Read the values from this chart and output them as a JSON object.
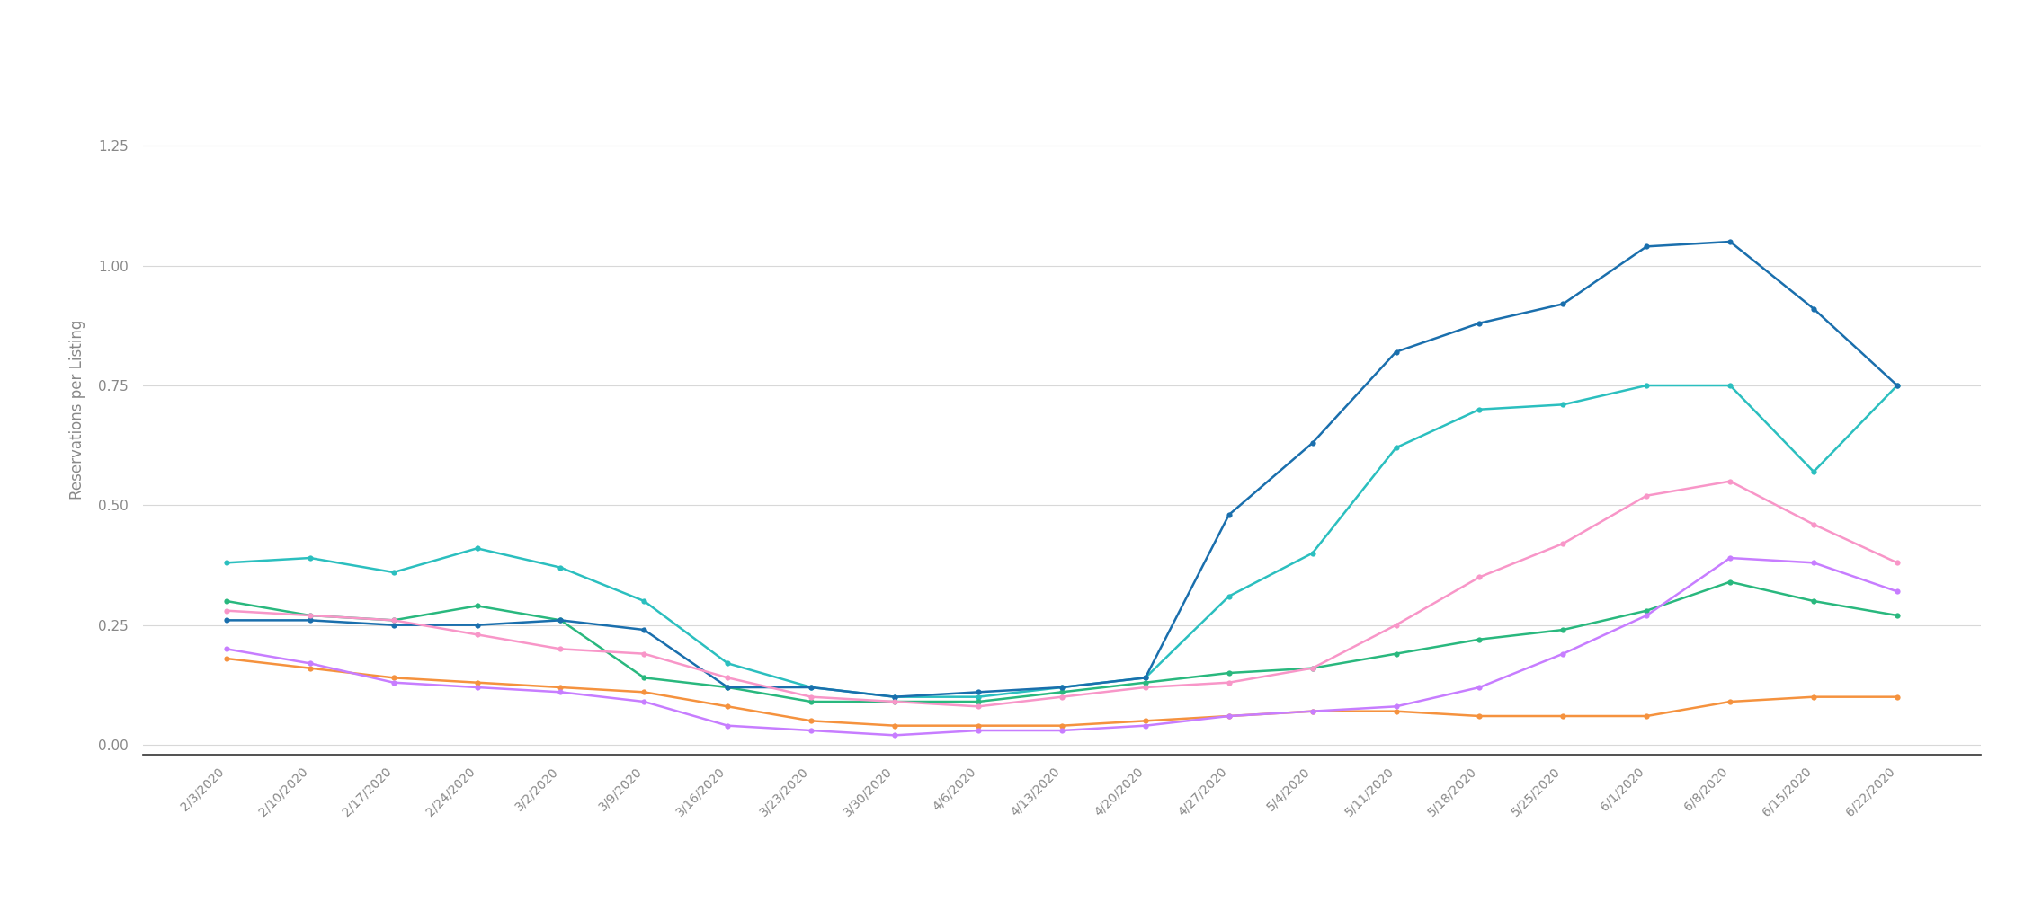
{
  "dates": [
    "2/3/2020",
    "2/10/2020",
    "2/17/2020",
    "2/24/2020",
    "3/2/2020",
    "3/9/2020",
    "3/16/2020",
    "3/23/2020",
    "3/30/2020",
    "4/6/2020",
    "4/13/2020",
    "4/20/2020",
    "4/27/2020",
    "5/4/2020",
    "5/11/2020",
    "5/18/2020",
    "5/25/2020",
    "6/1/2020",
    "6/8/2020",
    "6/15/2020",
    "6/22/2020"
  ],
  "series": {
    "East Coast Vacation Markets": {
      "color": "#2bbfbf",
      "values": [
        0.38,
        0.39,
        0.36,
        0.41,
        0.37,
        0.3,
        0.17,
        0.12,
        0.1,
        0.1,
        0.12,
        0.14,
        0.31,
        0.4,
        0.62,
        0.7,
        0.71,
        0.75,
        0.75,
        0.57,
        0.75
      ]
    },
    "Hawaii": {
      "color": "#f5923e",
      "values": [
        0.18,
        0.16,
        0.14,
        0.13,
        0.12,
        0.11,
        0.08,
        0.05,
        0.04,
        0.04,
        0.04,
        0.05,
        0.06,
        0.07,
        0.07,
        0.06,
        0.06,
        0.06,
        0.09,
        0.1,
        0.1
      ]
    },
    "Major Cities": {
      "color": "#29b87e",
      "values": [
        0.3,
        0.27,
        0.26,
        0.29,
        0.26,
        0.14,
        0.12,
        0.09,
        0.09,
        0.09,
        0.11,
        0.13,
        0.15,
        0.16,
        0.19,
        0.22,
        0.24,
        0.28,
        0.34,
        0.3,
        0.27
      ]
    },
    "Ski Markets": {
      "color": "#c77dff",
      "values": [
        0.2,
        0.17,
        0.13,
        0.12,
        0.11,
        0.09,
        0.04,
        0.03,
        0.02,
        0.03,
        0.03,
        0.04,
        0.06,
        0.07,
        0.08,
        0.12,
        0.19,
        0.27,
        0.39,
        0.38,
        0.32
      ]
    },
    "US Interior Vacation Areas": {
      "color": "#1a6fad",
      "values": [
        0.26,
        0.26,
        0.25,
        0.25,
        0.26,
        0.24,
        0.12,
        0.12,
        0.1,
        0.11,
        0.12,
        0.14,
        0.48,
        0.63,
        0.82,
        0.88,
        0.92,
        1.04,
        1.05,
        0.91,
        0.75
      ]
    },
    "West Coast": {
      "color": "#f896c8",
      "values": [
        0.28,
        0.27,
        0.26,
        0.23,
        0.2,
        0.19,
        0.14,
        0.1,
        0.09,
        0.08,
        0.1,
        0.12,
        0.13,
        0.16,
        0.25,
        0.35,
        0.42,
        0.52,
        0.55,
        0.46,
        0.38
      ]
    }
  },
  "ylabel": "Reservations per Listing",
  "ylim": [
    -0.02,
    1.42
  ],
  "yticks": [
    0.0,
    0.25,
    0.5,
    0.75,
    1.0,
    1.25
  ],
  "ytick_labels": [
    "0.00",
    "0.25",
    "0.50",
    "0.75",
    "1.00",
    "1.25"
  ],
  "background_color": "#ffffff",
  "grid_color": "#d8d8d8",
  "bottom_spine_color": "#333333",
  "tick_color": "#888888",
  "label_color": "#888888"
}
